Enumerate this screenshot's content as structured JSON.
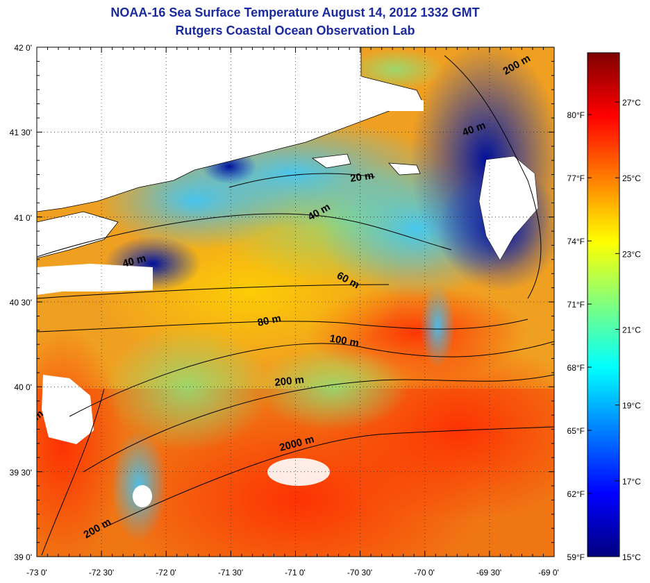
{
  "title_line1": "NOAA-16 Sea Surface Temperature August 14, 2012 1332 GMT",
  "title_line2": "Rutgers Coastal Ocean Observation Lab",
  "map": {
    "lon_range": [
      -73.0,
      -69.0
    ],
    "lat_range": [
      39.0,
      42.0
    ],
    "grid": "dotted",
    "x_tick_labels": [
      "-73 0'",
      "-72 30'",
      "-72 0'",
      "-71 30'",
      "-71 0'",
      "-70 30'",
      "-70 0'",
      "-69 30'",
      "-69 0'"
    ],
    "y_tick_labels": [
      "42 0'",
      "41 30'",
      "41 0'",
      "40 30'",
      "40 0'",
      "39 30'",
      "39 0'"
    ],
    "land_color": "#ffffff",
    "depth_labels": [
      "200 m",
      "40 m",
      "20 m",
      "40 m",
      "40 m",
      "60 m",
      "80 m",
      "100 m",
      "200 m",
      "2000 m",
      "200 m",
      "m"
    ]
  },
  "colorbar": {
    "celsius_labels": [
      "27°C",
      "25°C",
      "23°C",
      "21°C",
      "19°C",
      "17°C",
      "15°C"
    ],
    "fahrenheit_labels": [
      "80°F",
      "77°F",
      "74°F",
      "71°F",
      "68°F",
      "65°F",
      "62°F",
      "59°F"
    ],
    "colors": [
      "#00007f",
      "#0000ff",
      "#007fff",
      "#00ffff",
      "#7fff7f",
      "#ffff00",
      "#ff7f00",
      "#ff0000",
      "#7f0000"
    ]
  },
  "legend_values": {
    "celsius_min": 15,
    "celsius_max": 28.3,
    "celsius_ticks": [
      27,
      25,
      23,
      21,
      19,
      17,
      15
    ],
    "fahrenheit_ticks": [
      80,
      77,
      74,
      71,
      68,
      65,
      62,
      59
    ]
  }
}
